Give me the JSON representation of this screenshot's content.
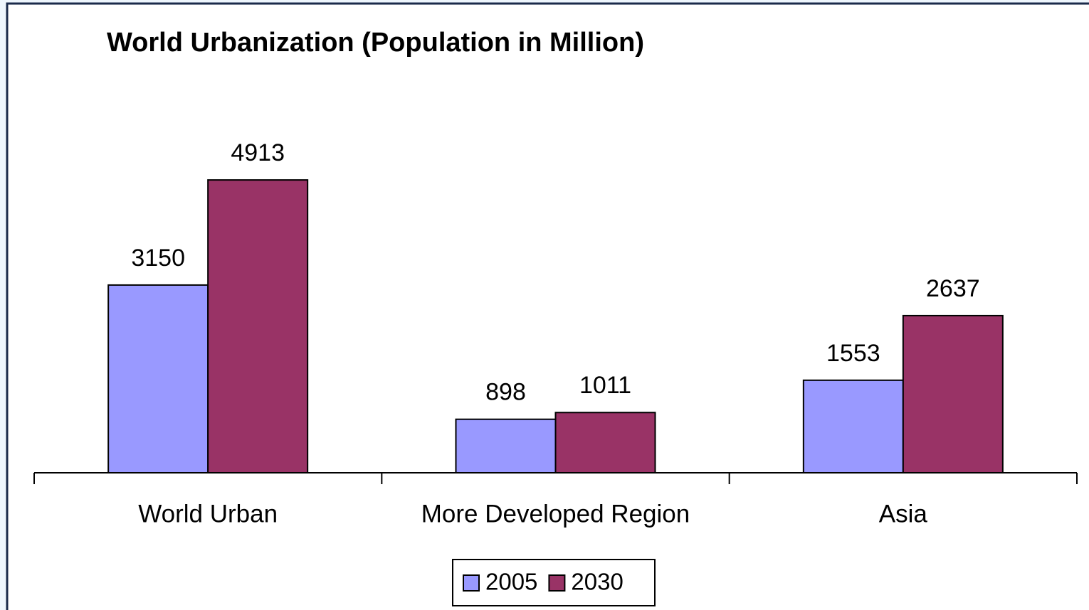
{
  "chart_data": {
    "type": "bar",
    "title": "World Urbanization (Population in Million)",
    "categories": [
      "World Urban",
      "More Developed Region",
      "Asia"
    ],
    "series": [
      {
        "name": "2005",
        "color": "#9999ff",
        "values": [
          3150,
          898,
          1553
        ]
      },
      {
        "name": "2030",
        "color": "#993366",
        "values": [
          4913,
          1011,
          2637
        ]
      }
    ],
    "ylim": [
      0,
      6000
    ],
    "legend": "bottom"
  }
}
